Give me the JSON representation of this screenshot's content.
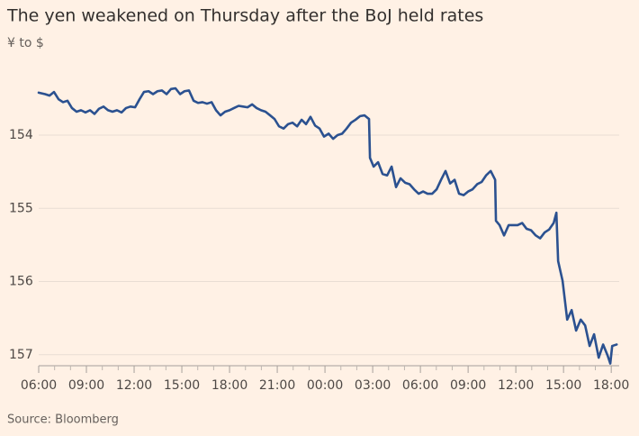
{
  "chart_data": {
    "type": "line",
    "title": "The yen weakened on Thursday after the BoJ held rates",
    "subtitle": "¥ to $",
    "source": "Source: Bloomberg",
    "x": [
      0,
      0.4,
      0.68,
      0.96,
      1.25,
      1.53,
      1.81,
      2.09,
      2.38,
      2.66,
      2.94,
      3.23,
      3.51,
      3.79,
      4.08,
      4.36,
      4.64,
      4.92,
      5.21,
      5.49,
      5.77,
      6.06,
      6.34,
      6.62,
      6.91,
      7.19,
      7.47,
      7.75,
      8.04,
      8.32,
      8.6,
      8.89,
      9.17,
      9.45,
      9.74,
      10.02,
      10.3,
      10.58,
      10.87,
      11.15,
      11.43,
      11.72,
      12.0,
      12.28,
      12.57,
      12.85,
      13.13,
      13.42,
      13.7,
      13.98,
      14.26,
      14.55,
      14.83,
      15.11,
      15.4,
      15.68,
      15.96,
      16.25,
      16.53,
      16.81,
      17.09,
      17.38,
      17.66,
      17.94,
      18.23,
      18.51,
      18.79,
      19.08,
      19.36,
      19.64,
      19.92,
      20.21,
      20.49,
      20.77,
      20.83,
      21.06,
      21.34,
      21.62,
      21.91,
      22.19,
      22.47,
      22.75,
      23.04,
      23.32,
      23.6,
      23.89,
      24.17,
      24.45,
      24.74,
      25.02,
      25.3,
      25.58,
      25.87,
      26.15,
      26.43,
      26.72,
      27.0,
      27.28,
      27.57,
      27.85,
      28.13,
      28.42,
      28.7,
      28.75,
      28.98,
      29.26,
      29.55,
      29.83,
      30.11,
      30.4,
      30.68,
      30.96,
      31.25,
      31.53,
      31.81,
      32.09,
      32.38,
      32.55,
      32.66,
      32.94,
      33.23,
      33.51,
      33.79,
      34.08,
      34.36,
      34.64,
      34.92,
      35.21,
      35.49,
      35.77,
      35.94,
      36.06,
      36.34
    ],
    "series": [
      {
        "color": "#2b5190",
        "values": [
          153.42,
          153.44,
          153.46,
          153.41,
          153.51,
          153.55,
          153.53,
          153.63,
          153.68,
          153.66,
          153.69,
          153.66,
          153.71,
          153.64,
          153.61,
          153.66,
          153.68,
          153.66,
          153.69,
          153.63,
          153.61,
          153.62,
          153.51,
          153.41,
          153.4,
          153.44,
          153.4,
          153.39,
          153.44,
          153.37,
          153.36,
          153.44,
          153.4,
          153.39,
          153.53,
          153.56,
          153.55,
          153.57,
          153.55,
          153.66,
          153.73,
          153.68,
          153.66,
          153.63,
          153.6,
          153.61,
          153.62,
          153.58,
          153.63,
          153.66,
          153.68,
          153.73,
          153.78,
          153.88,
          153.91,
          153.85,
          153.83,
          153.88,
          153.79,
          153.85,
          153.75,
          153.87,
          153.91,
          154.02,
          153.98,
          154.05,
          154.0,
          153.98,
          153.91,
          153.83,
          153.79,
          153.74,
          153.73,
          153.78,
          154.31,
          154.43,
          154.37,
          154.53,
          154.55,
          154.43,
          154.71,
          154.59,
          154.65,
          154.67,
          154.74,
          154.8,
          154.77,
          154.8,
          154.8,
          154.74,
          154.61,
          154.49,
          154.66,
          154.61,
          154.8,
          154.82,
          154.77,
          154.74,
          154.67,
          154.64,
          154.55,
          154.49,
          154.61,
          155.17,
          155.23,
          155.37,
          155.23,
          155.23,
          155.23,
          155.2,
          155.28,
          155.3,
          155.37,
          155.41,
          155.33,
          155.29,
          155.2,
          155.06,
          155.72,
          155.99,
          156.52,
          156.39,
          156.67,
          156.52,
          156.6,
          156.88,
          156.72,
          157.04,
          156.86,
          157.01,
          157.12,
          156.88,
          156.86
        ]
      }
    ],
    "xlim": [
      0,
      36.5
    ],
    "xticks": [
      {
        "value": 0,
        "label": "06:00"
      },
      {
        "value": 3,
        "label": "09:00"
      },
      {
        "value": 6,
        "label": "12:00"
      },
      {
        "value": 9,
        "label": "15:00"
      },
      {
        "value": 12,
        "label": "18:00"
      },
      {
        "value": 15,
        "label": "21:00"
      },
      {
        "value": 18,
        "label": "00:00"
      },
      {
        "value": 21,
        "label": "03:00"
      },
      {
        "value": 24,
        "label": "06:00"
      },
      {
        "value": 27,
        "label": "09:00"
      },
      {
        "value": 30,
        "label": "12:00"
      },
      {
        "value": 33,
        "label": "15:00"
      },
      {
        "value": 36,
        "label": "18:00"
      }
    ],
    "xminorticks": [
      1,
      2,
      4,
      5,
      7,
      8,
      10,
      11,
      13,
      14,
      16,
      17,
      19,
      20,
      22,
      23,
      25,
      26,
      28,
      29,
      31,
      32,
      34,
      35
    ],
    "ylim": [
      157.15,
      153.2
    ],
    "yticks": [
      154,
      155,
      156,
      157
    ],
    "grid": true
  }
}
